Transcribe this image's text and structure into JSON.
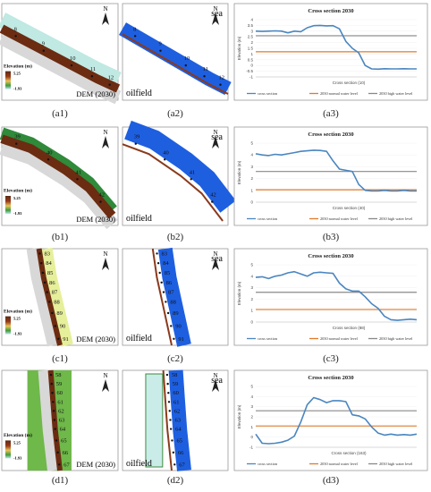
{
  "north": "N",
  "rows": [
    {
      "map_labels": {
        "dem": "DEM (2030)",
        "oilfield": "oilfield",
        "sea": "sea"
      },
      "legend": {
        "title": "Elevation (m)",
        "max": "5.25",
        "min": "-1.93"
      },
      "section_numbers": [
        "8",
        "9",
        "10",
        "11",
        "12"
      ],
      "panel_labels": [
        "(a1)",
        "(a2)",
        "(a3)"
      ],
      "chart_data": {
        "type": "line",
        "title": "Cross section 2030",
        "xlabel": "Cross section (10)",
        "ylabel": "Elevation (m)",
        "ylim": [
          -1,
          4
        ],
        "yticks": [
          "4",
          "3.5",
          "3",
          "2.5",
          "2",
          "1.5",
          "1",
          "0.5",
          "0",
          "-0.5",
          "-1"
        ],
        "series": [
          {
            "name": "cross section",
            "color": "#4a86c0",
            "x": [
              0,
              2,
              4,
              6,
              8,
              10,
              12,
              14,
              16,
              18,
              20,
              22,
              24,
              26,
              28,
              30,
              32,
              34,
              36,
              38,
              40,
              42,
              44,
              46,
              48,
              50
            ],
            "values": [
              3.0,
              2.98,
              3.0,
              3.02,
              3.0,
              2.85,
              3.0,
              2.95,
              3.3,
              3.48,
              3.5,
              3.46,
              3.48,
              3.2,
              2.1,
              1.5,
              1.1,
              0.0,
              -0.3,
              -0.32,
              -0.28,
              -0.3,
              -0.3,
              -0.28,
              -0.3,
              -0.3
            ]
          },
          {
            "name": "2030 normal water level",
            "color": "#e07b2a",
            "values": [
              1.2
            ]
          },
          {
            "name": "2030 high water level",
            "color": "#888888",
            "values": [
              2.6
            ]
          }
        ]
      }
    },
    {
      "map_labels": {
        "dem": "DEM (2030)",
        "oilfield": "oilfield",
        "sea": "sea"
      },
      "legend": {
        "title": "Elevation (m)",
        "max": "5.25",
        "min": "-1.93"
      },
      "section_numbers": [
        "39",
        "40",
        "41",
        "42"
      ],
      "panel_labels": [
        "(b1)",
        "(b2)",
        "(b3)"
      ],
      "chart_data": {
        "type": "line",
        "title": "Cross section 2030",
        "xlabel": "Cross section (40)",
        "ylabel": "Elevation (m)",
        "ylim": [
          0,
          5
        ],
        "yticks": [
          "5",
          "4",
          "3",
          "2",
          "1",
          "0"
        ],
        "series": [
          {
            "name": "cross section",
            "color": "#4a86c0",
            "x": [
              0,
              2,
              4,
              6,
              8,
              10,
              12,
              14,
              16,
              18,
              20,
              22,
              24,
              26,
              28,
              30,
              32,
              34,
              36,
              38,
              40,
              42,
              44,
              46,
              48,
              50
            ],
            "values": [
              4.1,
              4.0,
              3.95,
              4.05,
              4.0,
              4.1,
              4.2,
              4.3,
              4.35,
              4.4,
              4.38,
              4.3,
              3.5,
              2.8,
              2.7,
              2.6,
              1.5,
              1.0,
              0.95,
              0.95,
              1.0,
              0.95,
              0.95,
              1.0,
              0.95,
              0.95
            ]
          },
          {
            "name": "2030 normal water level",
            "color": "#e07b2a",
            "values": [
              1.05
            ]
          },
          {
            "name": "2030 high water level",
            "color": "#888888",
            "values": [
              2.6
            ]
          }
        ]
      }
    },
    {
      "map_labels": {
        "dem": "DEM (2030)",
        "oilfield": "oilfield",
        "sea": "sea"
      },
      "legend": {
        "title": "Elevation (m)",
        "max": "5.25",
        "min": "-1.93"
      },
      "section_numbers": [
        "83",
        "84",
        "85",
        "86",
        "87",
        "88",
        "89",
        "90",
        "91"
      ],
      "panel_labels": [
        "(c1)",
        "(c2)",
        "(c3)"
      ],
      "chart_data": {
        "type": "line",
        "title": "Cross section 2030",
        "xlabel": "Cross section (88)",
        "ylabel": "Elevation (m)",
        "ylim": [
          0,
          5
        ],
        "yticks": [
          "5",
          "4",
          "3",
          "2",
          "1",
          "0"
        ],
        "series": [
          {
            "name": "cross section",
            "color": "#4a86c0",
            "x": [
              0,
              2,
              4,
              6,
              8,
              10,
              12,
              14,
              16,
              18,
              20,
              22,
              24,
              26,
              28,
              30,
              32,
              34,
              36,
              38,
              40,
              42,
              44,
              46,
              48,
              50
            ],
            "values": [
              3.9,
              3.95,
              3.8,
              4.0,
              4.1,
              4.3,
              4.4,
              4.2,
              4.0,
              4.3,
              4.35,
              4.3,
              4.25,
              3.4,
              2.9,
              2.7,
              2.7,
              2.2,
              1.6,
              1.2,
              0.5,
              0.2,
              0.15,
              0.2,
              0.25,
              0.2
            ]
          },
          {
            "name": "2030 normal water level",
            "color": "#e07b2a",
            "values": [
              1.1
            ]
          },
          {
            "name": "2030 high water level",
            "color": "#888888",
            "values": [
              2.6
            ]
          }
        ]
      }
    },
    {
      "map_labels": {
        "dem": "DEM (2030)",
        "oilfield": "oilfield",
        "sea": "sea"
      },
      "legend": {
        "title": "Elevation (m)",
        "max": "5.25",
        "min": "-1.93"
      },
      "section_numbers": [
        "58",
        "59",
        "60",
        "61",
        "62",
        "63",
        "64",
        "65",
        "66",
        "67"
      ],
      "panel_labels": [
        "(d1)",
        "(d2)",
        "(d3)"
      ],
      "chart_data": {
        "type": "line",
        "title": "Cross section 2030",
        "xlabel": "Cross section (163)",
        "ylabel": "Elevation (m)",
        "ylim": [
          -1,
          5
        ],
        "yticks": [
          "5",
          "4",
          "3",
          "2",
          "1",
          "0",
          "-1"
        ],
        "series": [
          {
            "name": "cross section",
            "color": "#4a86c0",
            "x": [
              0,
              2,
              4,
              6,
              8,
              10,
              12,
              14,
              16,
              18,
              20,
              22,
              24,
              26,
              28,
              30,
              32,
              34,
              36,
              38,
              40,
              42,
              44,
              46,
              48,
              50
            ],
            "values": [
              0.3,
              -0.6,
              -0.65,
              -0.6,
              -0.5,
              -0.3,
              0.1,
              1.5,
              3.2,
              3.9,
              3.7,
              3.4,
              3.6,
              3.6,
              3.5,
              2.2,
              2.1,
              1.8,
              1.0,
              0.4,
              0.2,
              0.3,
              0.2,
              0.25,
              0.2,
              0.3
            ]
          },
          {
            "name": "2030 normal water level",
            "color": "#e07b2a",
            "values": [
              1.1
            ]
          },
          {
            "name": "2030 high water level",
            "color": "#888888",
            "values": [
              2.6
            ]
          }
        ]
      }
    }
  ]
}
